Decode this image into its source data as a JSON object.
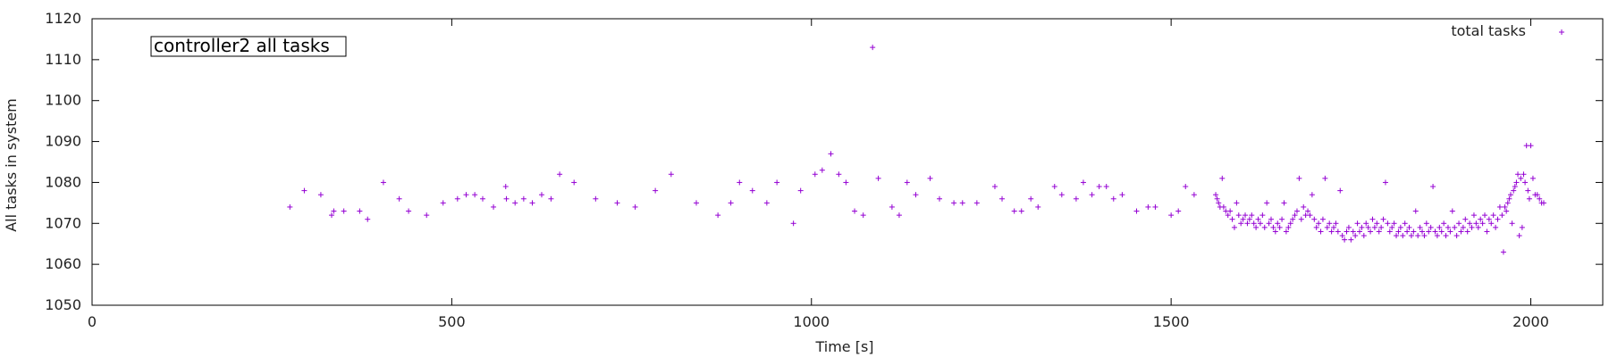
{
  "chart_data": {
    "type": "scatter",
    "title": "controller2 all tasks",
    "xlabel": "Time [s]",
    "ylabel": "All tasks in system",
    "xlim": [
      0,
      2100
    ],
    "ylim": [
      1050,
      1120
    ],
    "xticks": [
      0,
      500,
      1000,
      1500,
      2000
    ],
    "yticks": [
      1050,
      1060,
      1070,
      1080,
      1090,
      1100,
      1110,
      1120
    ],
    "grid": false,
    "legend_position": "top-right",
    "marker": "plus",
    "color": "#9400d3",
    "series": [
      {
        "name": "total tasks",
        "points": [
          [
            275,
            1074
          ],
          [
            295,
            1078
          ],
          [
            318,
            1077
          ],
          [
            333,
            1072
          ],
          [
            336,
            1073
          ],
          [
            350,
            1073
          ],
          [
            372,
            1073
          ],
          [
            383,
            1071
          ],
          [
            405,
            1080
          ],
          [
            427,
            1076
          ],
          [
            440,
            1073
          ],
          [
            465,
            1072
          ],
          [
            488,
            1075
          ],
          [
            508,
            1076
          ],
          [
            520,
            1077
          ],
          [
            532,
            1077
          ],
          [
            543,
            1076
          ],
          [
            558,
            1074
          ],
          [
            575,
            1079
          ],
          [
            576,
            1076
          ],
          [
            588,
            1075
          ],
          [
            600,
            1076
          ],
          [
            612,
            1075
          ],
          [
            625,
            1077
          ],
          [
            638,
            1076
          ],
          [
            650,
            1082
          ],
          [
            670,
            1080
          ],
          [
            700,
            1076
          ],
          [
            730,
            1075
          ],
          [
            755,
            1074
          ],
          [
            783,
            1078
          ],
          [
            805,
            1082
          ],
          [
            840,
            1075
          ],
          [
            870,
            1072
          ],
          [
            888,
            1075
          ],
          [
            900,
            1080
          ],
          [
            918,
            1078
          ],
          [
            938,
            1075
          ],
          [
            952,
            1080
          ],
          [
            975,
            1070
          ],
          [
            985,
            1078
          ],
          [
            1005,
            1082
          ],
          [
            1015,
            1083
          ],
          [
            1027,
            1087
          ],
          [
            1038,
            1082
          ],
          [
            1048,
            1080
          ],
          [
            1060,
            1073
          ],
          [
            1072,
            1072
          ],
          [
            1085,
            1113
          ],
          [
            1093,
            1081
          ],
          [
            1112,
            1074
          ],
          [
            1122,
            1072
          ],
          [
            1133,
            1080
          ],
          [
            1145,
            1077
          ],
          [
            1165,
            1081
          ],
          [
            1178,
            1076
          ],
          [
            1198,
            1075
          ],
          [
            1210,
            1075
          ],
          [
            1230,
            1075
          ],
          [
            1255,
            1079
          ],
          [
            1265,
            1076
          ],
          [
            1282,
            1073
          ],
          [
            1292,
            1073
          ],
          [
            1305,
            1076
          ],
          [
            1315,
            1074
          ],
          [
            1338,
            1079
          ],
          [
            1348,
            1077
          ],
          [
            1368,
            1076
          ],
          [
            1378,
            1080
          ],
          [
            1390,
            1077
          ],
          [
            1400,
            1079
          ],
          [
            1410,
            1079
          ],
          [
            1420,
            1076
          ],
          [
            1432,
            1077
          ],
          [
            1452,
            1073
          ],
          [
            1468,
            1074
          ],
          [
            1478,
            1074
          ],
          [
            1500,
            1072
          ],
          [
            1510,
            1073
          ],
          [
            1520,
            1079
          ],
          [
            1532,
            1077
          ],
          [
            1562,
            1077
          ],
          [
            1564,
            1076
          ],
          [
            1566,
            1075
          ],
          [
            1568,
            1074
          ],
          [
            1571,
            1081
          ],
          [
            1573,
            1074
          ],
          [
            1576,
            1073
          ],
          [
            1579,
            1072
          ],
          [
            1582,
            1073
          ],
          [
            1585,
            1071
          ],
          [
            1588,
            1069
          ],
          [
            1591,
            1075
          ],
          [
            1594,
            1072
          ],
          [
            1597,
            1070
          ],
          [
            1600,
            1071
          ],
          [
            1603,
            1072
          ],
          [
            1606,
            1070
          ],
          [
            1609,
            1071
          ],
          [
            1612,
            1072
          ],
          [
            1615,
            1070
          ],
          [
            1618,
            1069
          ],
          [
            1621,
            1071
          ],
          [
            1624,
            1070
          ],
          [
            1627,
            1072
          ],
          [
            1630,
            1069
          ],
          [
            1633,
            1075
          ],
          [
            1636,
            1070
          ],
          [
            1639,
            1071
          ],
          [
            1642,
            1069
          ],
          [
            1645,
            1068
          ],
          [
            1648,
            1070
          ],
          [
            1651,
            1069
          ],
          [
            1654,
            1071
          ],
          [
            1657,
            1075
          ],
          [
            1660,
            1068
          ],
          [
            1663,
            1069
          ],
          [
            1666,
            1070
          ],
          [
            1669,
            1071
          ],
          [
            1672,
            1072
          ],
          [
            1675,
            1073
          ],
          [
            1678,
            1081
          ],
          [
            1681,
            1071
          ],
          [
            1684,
            1074
          ],
          [
            1687,
            1072
          ],
          [
            1690,
            1073
          ],
          [
            1693,
            1072
          ],
          [
            1696,
            1077
          ],
          [
            1699,
            1071
          ],
          [
            1702,
            1069
          ],
          [
            1705,
            1070
          ],
          [
            1708,
            1068
          ],
          [
            1711,
            1071
          ],
          [
            1714,
            1081
          ],
          [
            1717,
            1069
          ],
          [
            1720,
            1070
          ],
          [
            1723,
            1068
          ],
          [
            1726,
            1069
          ],
          [
            1729,
            1070
          ],
          [
            1732,
            1068
          ],
          [
            1735,
            1078
          ],
          [
            1738,
            1067
          ],
          [
            1741,
            1066
          ],
          [
            1744,
            1068
          ],
          [
            1747,
            1069
          ],
          [
            1750,
            1066
          ],
          [
            1753,
            1068
          ],
          [
            1756,
            1067
          ],
          [
            1759,
            1070
          ],
          [
            1762,
            1068
          ],
          [
            1765,
            1069
          ],
          [
            1768,
            1067
          ],
          [
            1771,
            1070
          ],
          [
            1774,
            1069
          ],
          [
            1777,
            1068
          ],
          [
            1780,
            1071
          ],
          [
            1783,
            1069
          ],
          [
            1786,
            1070
          ],
          [
            1789,
            1068
          ],
          [
            1792,
            1069
          ],
          [
            1795,
            1071
          ],
          [
            1798,
            1080
          ],
          [
            1801,
            1070
          ],
          [
            1804,
            1068
          ],
          [
            1807,
            1069
          ],
          [
            1810,
            1070
          ],
          [
            1813,
            1067
          ],
          [
            1816,
            1068
          ],
          [
            1819,
            1069
          ],
          [
            1822,
            1067
          ],
          [
            1825,
            1070
          ],
          [
            1828,
            1068
          ],
          [
            1831,
            1069
          ],
          [
            1834,
            1067
          ],
          [
            1837,
            1068
          ],
          [
            1840,
            1073
          ],
          [
            1843,
            1067
          ],
          [
            1846,
            1069
          ],
          [
            1849,
            1068
          ],
          [
            1852,
            1067
          ],
          [
            1855,
            1070
          ],
          [
            1858,
            1068
          ],
          [
            1861,
            1069
          ],
          [
            1864,
            1079
          ],
          [
            1867,
            1068
          ],
          [
            1870,
            1067
          ],
          [
            1873,
            1069
          ],
          [
            1876,
            1068
          ],
          [
            1879,
            1070
          ],
          [
            1882,
            1067
          ],
          [
            1885,
            1069
          ],
          [
            1888,
            1068
          ],
          [
            1891,
            1073
          ],
          [
            1894,
            1069
          ],
          [
            1897,
            1067
          ],
          [
            1900,
            1070
          ],
          [
            1903,
            1068
          ],
          [
            1906,
            1069
          ],
          [
            1909,
            1071
          ],
          [
            1912,
            1068
          ],
          [
            1915,
            1070
          ],
          [
            1918,
            1069
          ],
          [
            1921,
            1072
          ],
          [
            1924,
            1070
          ],
          [
            1927,
            1069
          ],
          [
            1930,
            1071
          ],
          [
            1933,
            1070
          ],
          [
            1936,
            1072
          ],
          [
            1939,
            1068
          ],
          [
            1942,
            1071
          ],
          [
            1945,
            1070
          ],
          [
            1948,
            1072
          ],
          [
            1951,
            1069
          ],
          [
            1954,
            1071
          ],
          [
            1957,
            1074
          ],
          [
            1960,
            1072
          ],
          [
            1962,
            1063
          ],
          [
            1964,
            1074
          ],
          [
            1966,
            1073
          ],
          [
            1968,
            1075
          ],
          [
            1970,
            1076
          ],
          [
            1972,
            1077
          ],
          [
            1974,
            1070
          ],
          [
            1976,
            1078
          ],
          [
            1978,
            1079
          ],
          [
            1980,
            1080
          ],
          [
            1982,
            1082
          ],
          [
            1984,
            1067
          ],
          [
            1986,
            1081
          ],
          [
            1988,
            1069
          ],
          [
            1990,
            1082
          ],
          [
            1992,
            1080
          ],
          [
            1994,
            1089
          ],
          [
            1996,
            1078
          ],
          [
            1998,
            1076
          ],
          [
            2000,
            1089
          ],
          [
            2003,
            1081
          ],
          [
            2006,
            1077
          ],
          [
            2009,
            1077
          ],
          [
            2012,
            1076
          ],
          [
            2015,
            1075
          ],
          [
            2018,
            1075
          ]
        ]
      }
    ]
  }
}
